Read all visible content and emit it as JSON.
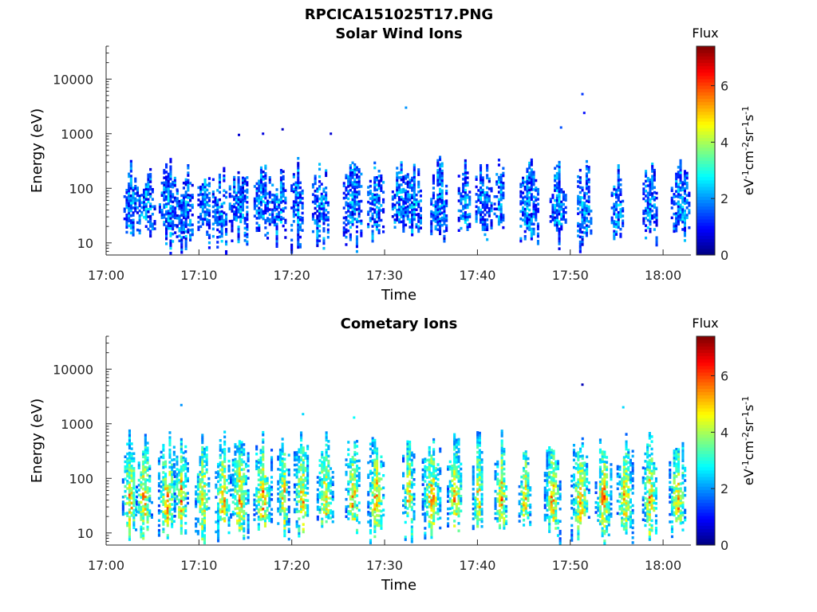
{
  "figure_title": "RPCICA151025T17.PNG",
  "chart_data": [
    {
      "type": "heatmap",
      "title": "Solar Wind Ions",
      "xlabel": "Time",
      "ylabel": "Energy (eV)",
      "x_tick_labels": [
        "17:00",
        "17:10",
        "17:20",
        "17:30",
        "17:40",
        "17:50",
        "18:00"
      ],
      "x_range_minutes": [
        0,
        63
      ],
      "y_scale": "log",
      "y_range": [
        6,
        40000
      ],
      "y_tick_labels": [
        "10",
        "100",
        "1000",
        "10000"
      ],
      "colorbar": {
        "title": "Flux",
        "label": "eV-1cm-2sr-1s-1",
        "range": [
          0,
          7.4
        ],
        "tick_labels": [
          "0",
          "2",
          "4",
          "6"
        ],
        "colormap": "jet"
      },
      "bursts_minutes": [
        2.5,
        4.2,
        6.6,
        8.3,
        10.5,
        12.2,
        14.2,
        16.7,
        18.5,
        20.5,
        23.0,
        26.5,
        29.0,
        31.5,
        33.0,
        35.8,
        38.5,
        40.5,
        42.3,
        45.5,
        48.6,
        51.5,
        55.0,
        58.5,
        61.8
      ],
      "peak_flux": 3.2,
      "core_energy_ev": [
        20,
        300
      ],
      "outliers": [
        {
          "time_min": 19.0,
          "energy_ev": 1200,
          "flux": 0.5
        },
        {
          "time_min": 24.2,
          "energy_ev": 1000,
          "flux": 0.6
        },
        {
          "time_min": 32.3,
          "energy_ev": 3000,
          "flux": 2.0
        },
        {
          "time_min": 49.0,
          "energy_ev": 1300,
          "flux": 1.5
        },
        {
          "time_min": 51.3,
          "energy_ev": 5300,
          "flux": 1.3
        },
        {
          "time_min": 51.5,
          "energy_ev": 2400,
          "flux": 1.0
        },
        {
          "time_min": 16.9,
          "energy_ev": 1000,
          "flux": 0.7
        },
        {
          "time_min": 14.3,
          "energy_ev": 950,
          "flux": 0.6
        }
      ]
    },
    {
      "type": "heatmap",
      "title": "Cometary Ions",
      "xlabel": "Time",
      "ylabel": "Energy (eV)",
      "x_tick_labels": [
        "17:00",
        "17:10",
        "17:20",
        "17:30",
        "17:40",
        "17:50",
        "18:00"
      ],
      "x_range_minutes": [
        0,
        63
      ],
      "y_scale": "log",
      "y_range": [
        6,
        40000
      ],
      "y_tick_labels": [
        "10",
        "100",
        "1000",
        "10000"
      ],
      "colorbar": {
        "title": "Flux",
        "label": "eV-1cm-2sr-1s-1",
        "range": [
          0,
          7.4
        ],
        "tick_labels": [
          "0",
          "2",
          "4",
          "6"
        ],
        "colormap": "jet"
      },
      "bursts_minutes": [
        2.5,
        4.0,
        6.5,
        8.0,
        10.3,
        12.5,
        14.3,
        16.8,
        19.0,
        21.0,
        23.5,
        26.5,
        29.0,
        32.5,
        35.0,
        37.5,
        40.0,
        42.5,
        45.0,
        48.0,
        51.0,
        53.5,
        55.8,
        58.5,
        61.5
      ],
      "peak_flux": 6.2,
      "core_energy_ev": [
        15,
        700
      ],
      "outliers": [
        {
          "time_min": 8.1,
          "energy_ev": 2200,
          "flux": 2.0
        },
        {
          "time_min": 21.2,
          "energy_ev": 1500,
          "flux": 2.5
        },
        {
          "time_min": 51.3,
          "energy_ev": 5200,
          "flux": 0.4
        },
        {
          "time_min": 55.7,
          "energy_ev": 2000,
          "flux": 2.5
        },
        {
          "time_min": 26.7,
          "energy_ev": 1300,
          "flux": 2.8
        }
      ]
    }
  ]
}
